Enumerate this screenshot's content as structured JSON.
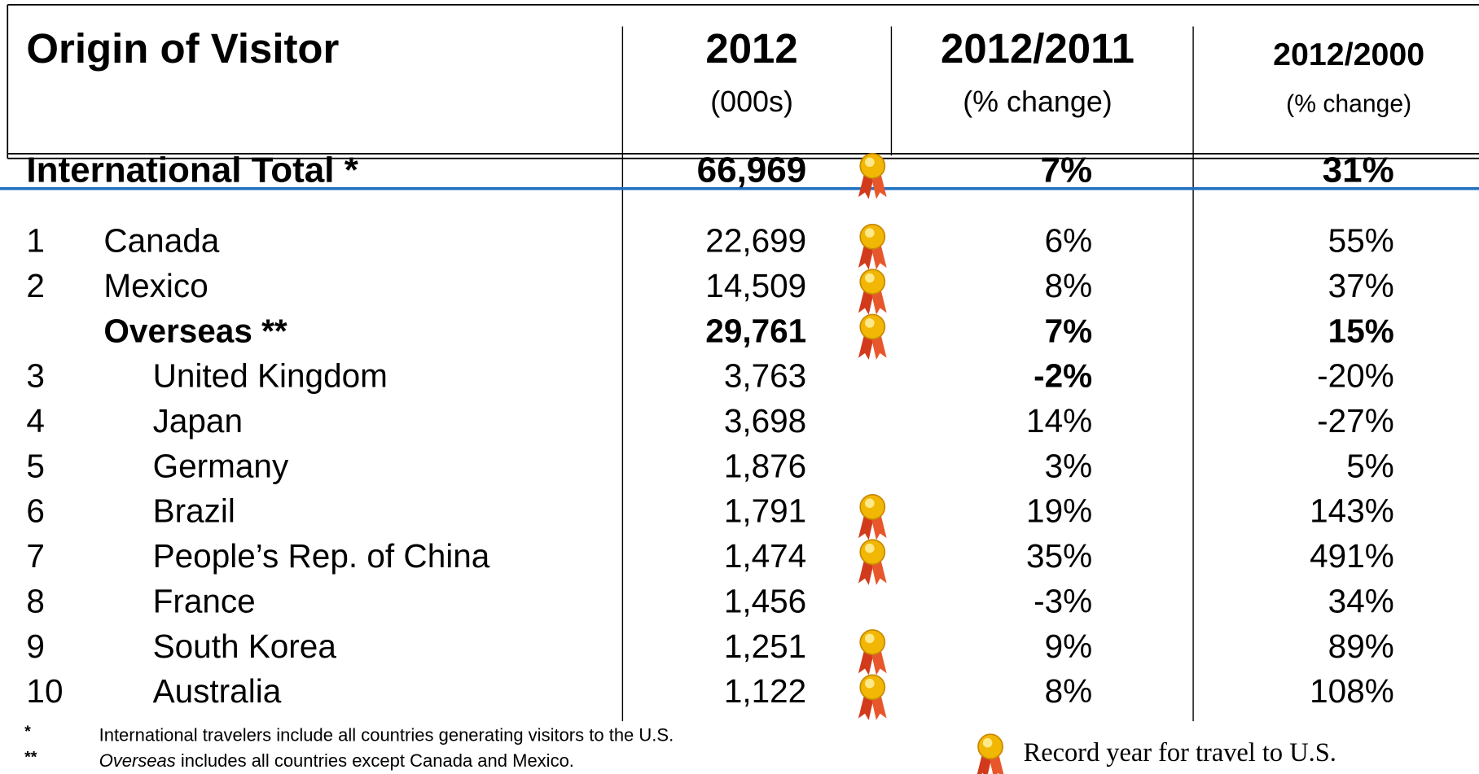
{
  "header": {
    "origin": "Origin of Visitor",
    "visitors": "2012",
    "visitors_sub": "(000s)",
    "change_2011": "2012/2011",
    "change_2011_sub": "(% change)",
    "change_2000": "2012/2000",
    "change_2000_sub": "(% change)"
  },
  "total": {
    "label": "International Total *",
    "visitors": "66,969",
    "change_2011": "7%",
    "change_2000": "31%",
    "record": true
  },
  "rows": [
    {
      "rank": "1",
      "country": "Canada",
      "visitors": "22,699",
      "change_2011": "6%",
      "change_2000": "55%",
      "record": true,
      "level": 1
    },
    {
      "rank": "2",
      "country": "Mexico",
      "visitors": "14,509",
      "change_2011": "8%",
      "change_2000": "37%",
      "record": true,
      "level": 1
    },
    {
      "country": "Overseas **",
      "visitors": "29,761",
      "change_2011": "7%",
      "change_2000": "15%",
      "record": true,
      "level": 1,
      "bold": true
    },
    {
      "rank": "3",
      "country": "United Kingdom",
      "visitors": "3,763",
      "change_2011": "-2%",
      "change_2000": "-20%",
      "record": false,
      "level": 2,
      "bold_cells": [
        "change_2011"
      ]
    },
    {
      "rank": "4",
      "country": "Japan",
      "visitors": "3,698",
      "change_2011": "14%",
      "change_2000": "-27%",
      "record": false,
      "level": 2
    },
    {
      "rank": "5",
      "country": "Germany",
      "visitors": "1,876",
      "change_2011": "3%",
      "change_2000": "5%",
      "record": false,
      "level": 2
    },
    {
      "rank": "6",
      "country": "Brazil",
      "visitors": "1,791",
      "change_2011": "19%",
      "change_2000": "143%",
      "record": true,
      "level": 2
    },
    {
      "rank": "7",
      "country": "People’s Rep. of China",
      "visitors": "1,474",
      "change_2011": "35%",
      "change_2000": "491%",
      "record": true,
      "level": 2
    },
    {
      "rank": "8",
      "country": "France",
      "visitors": "1,456",
      "change_2011": "-3%",
      "change_2000": "34%",
      "record": false,
      "level": 2
    },
    {
      "rank": "9",
      "country": "South Korea",
      "visitors": "1,251",
      "change_2011": "9%",
      "change_2000": "89%",
      "record": true,
      "level": 2
    },
    {
      "rank": "10",
      "country": "Australia",
      "visitors": "1,122",
      "change_2011": "8%",
      "change_2000": "108%",
      "record": true,
      "level": 2
    }
  ],
  "footnotes": [
    {
      "mark": "*",
      "text": "International travelers include all countries generating visitors to the U.S."
    },
    {
      "mark": "**",
      "emphasis": "Overseas",
      "text": " includes all countries except Canada and Mexico."
    }
  ],
  "legend": "Record year for travel to U.S."
}
